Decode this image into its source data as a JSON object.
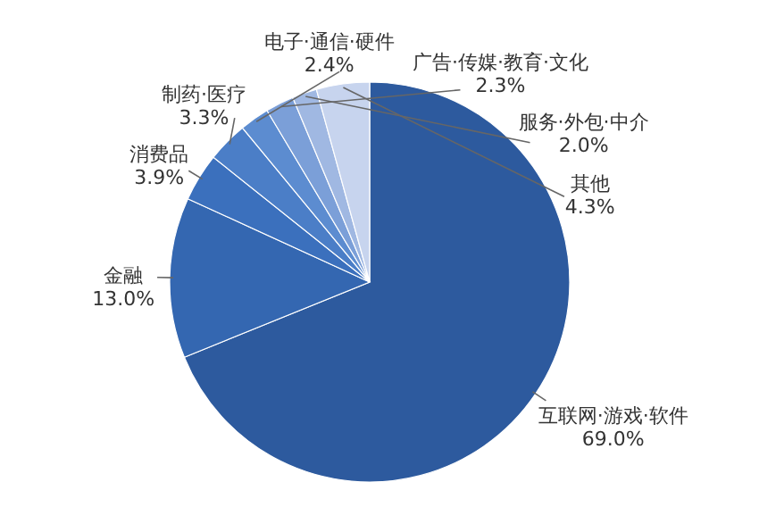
{
  "chart_data": {
    "type": "pie",
    "categories": [
      "互联网·游戏·软件",
      "金融",
      "消费品",
      "制药·医疗",
      "电子·通信·硬件",
      "广告·传媒·教育·文化",
      "服务·外包·中介",
      "其他"
    ],
    "values": [
      69.0,
      13.0,
      3.9,
      3.3,
      2.4,
      2.3,
      2.0,
      4.3
    ],
    "value_labels": [
      "69.0%",
      "13.0%",
      "3.9%",
      "3.3%",
      "2.4%",
      "2.3%",
      "2.0%",
      "4.3%"
    ],
    "colors": [
      "#2d5a9e",
      "#3467b1",
      "#3b70bd",
      "#4b7ec7",
      "#5c8cd0",
      "#7b9fd8",
      "#a0b8e2",
      "#c7d4ee"
    ]
  }
}
